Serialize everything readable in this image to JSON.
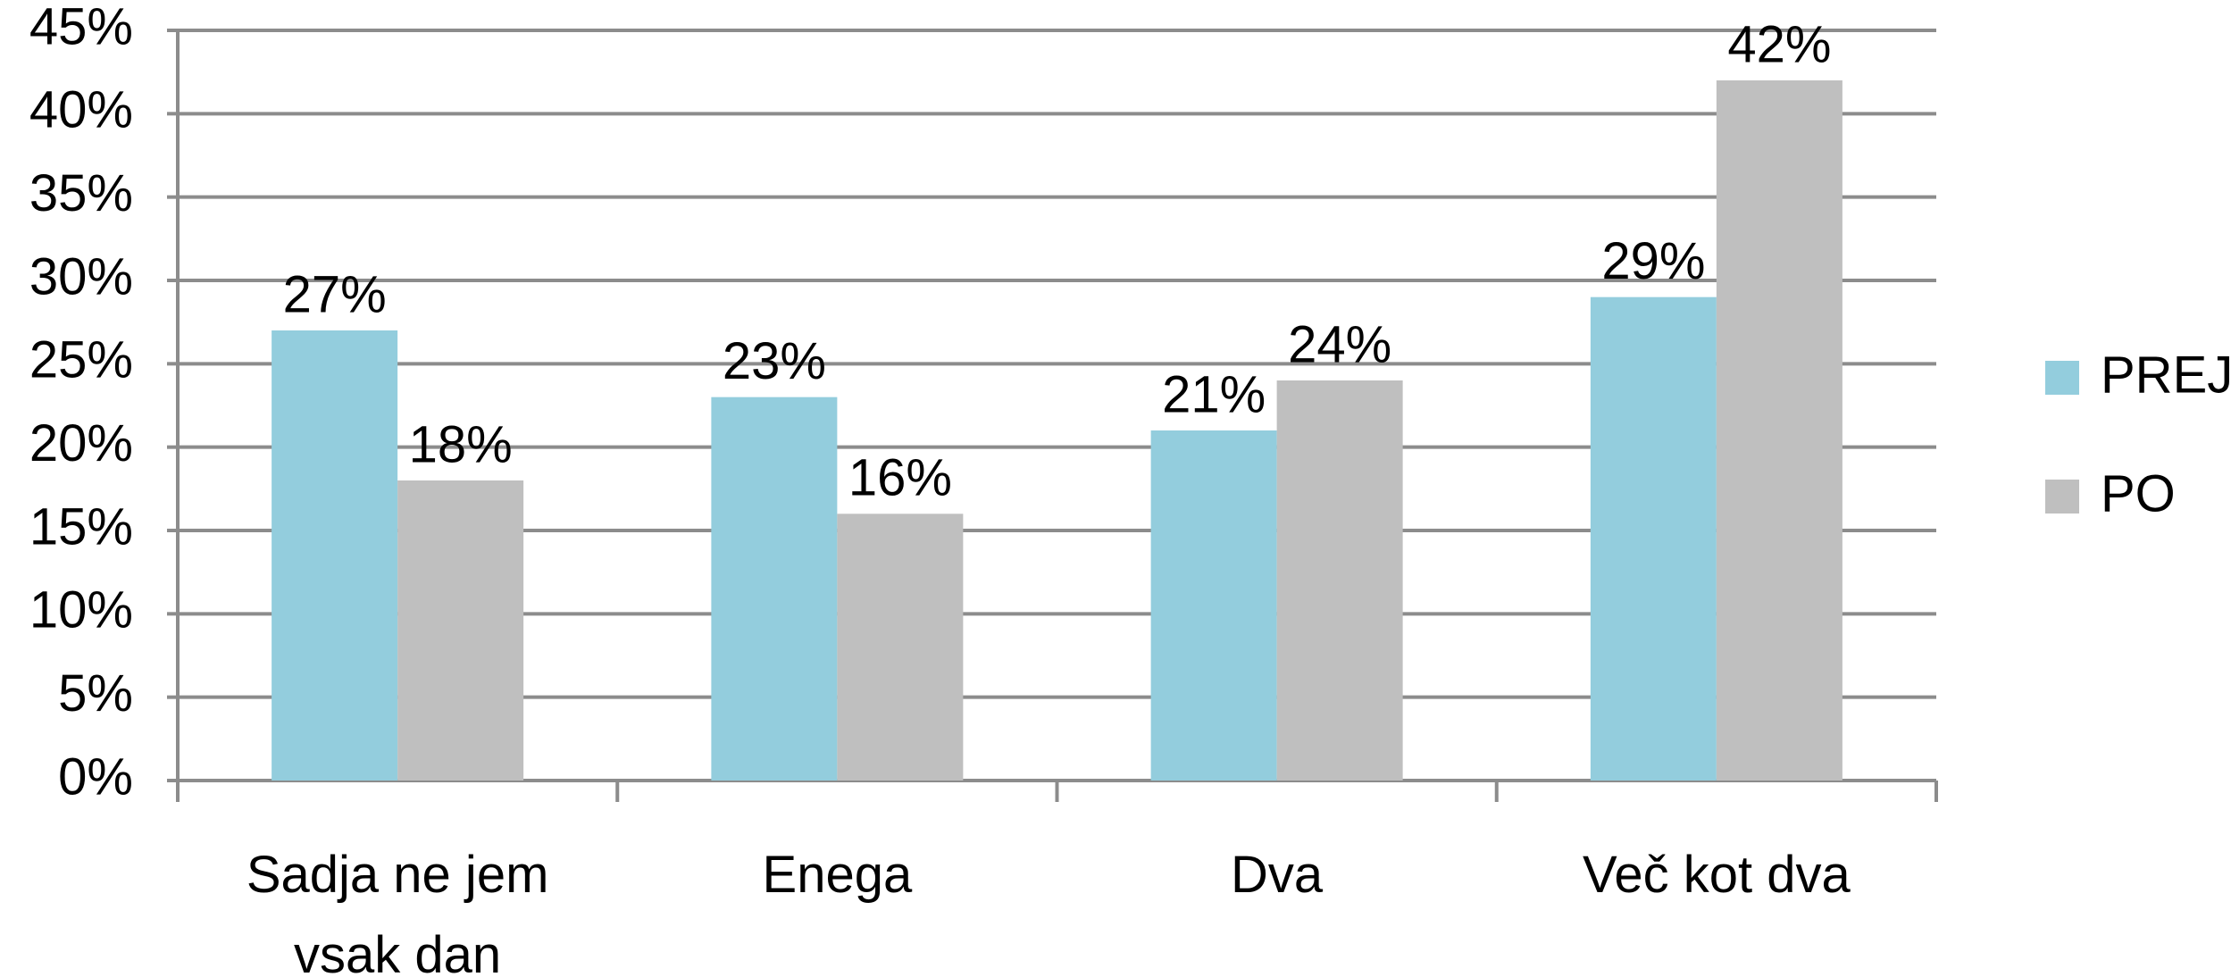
{
  "chart_data": {
    "type": "bar",
    "categories": [
      "Sadja ne jem vsak dan",
      "Enega",
      "Dva",
      "Več kot dva"
    ],
    "series": [
      {
        "name": "PREJ",
        "color": "#93cddd",
        "values": [
          27,
          23,
          21,
          29
        ],
        "value_labels": [
          "27%",
          "23%",
          "21%",
          "29%"
        ]
      },
      {
        "name": "PO",
        "color": "#bfbfbf",
        "values": [
          18,
          16,
          24,
          42
        ],
        "value_labels": [
          "18%",
          "16%",
          "24%",
          "42%"
        ]
      }
    ],
    "ylim": [
      0,
      45
    ],
    "yticks": [
      {
        "value": 0,
        "label": "0%"
      },
      {
        "value": 5,
        "label": "5%"
      },
      {
        "value": 10,
        "label": "10%"
      },
      {
        "value": 15,
        "label": "15%"
      },
      {
        "value": 20,
        "label": "20%"
      },
      {
        "value": 25,
        "label": "25%"
      },
      {
        "value": 30,
        "label": "30%"
      },
      {
        "value": 35,
        "label": "35%"
      },
      {
        "value": 40,
        "label": "40%"
      },
      {
        "value": 45,
        "label": "45%"
      }
    ],
    "grid": true,
    "legend": "right"
  }
}
